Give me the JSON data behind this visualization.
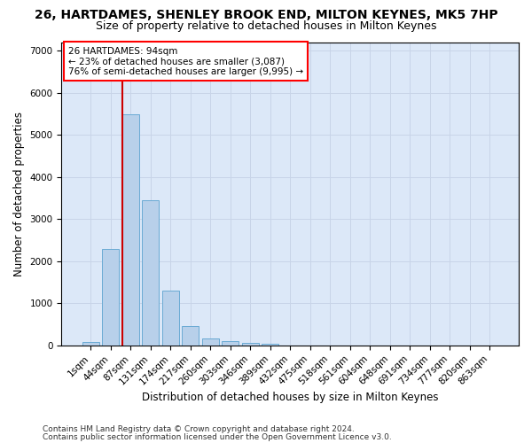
{
  "title": "26, HARTDAMES, SHENLEY BROOK END, MILTON KEYNES, MK5 7HP",
  "subtitle": "Size of property relative to detached houses in Milton Keynes",
  "xlabel": "Distribution of detached houses by size in Milton Keynes",
  "ylabel": "Number of detached properties",
  "footnote1": "Contains HM Land Registry data © Crown copyright and database right 2024.",
  "footnote2": "Contains public sector information licensed under the Open Government Licence v3.0.",
  "bar_labels": [
    "1sqm",
    "44sqm",
    "87sqm",
    "131sqm",
    "174sqm",
    "217sqm",
    "260sqm",
    "303sqm",
    "346sqm",
    "389sqm",
    "432sqm",
    "475sqm",
    "518sqm",
    "561sqm",
    "604sqm",
    "648sqm",
    "691sqm",
    "734sqm",
    "777sqm",
    "820sqm",
    "863sqm"
  ],
  "bar_values": [
    80,
    2280,
    5480,
    3450,
    1310,
    460,
    155,
    100,
    55,
    40,
    0,
    0,
    0,
    0,
    0,
    0,
    0,
    0,
    0,
    0,
    0
  ],
  "bar_color": "#b8d0ea",
  "bar_edge_color": "#6aaad4",
  "grid_color": "#c8d4e8",
  "background_color": "#dce8f8",
  "vline_color": "#cc0000",
  "vline_bar_index": 2,
  "annotation_text": "26 HARTDAMES: 94sqm\n← 23% of detached houses are smaller (3,087)\n76% of semi-detached houses are larger (9,995) →",
  "ylim": [
    0,
    7200
  ],
  "yticks": [
    0,
    1000,
    2000,
    3000,
    4000,
    5000,
    6000,
    7000
  ],
  "title_fontsize": 10,
  "subtitle_fontsize": 9,
  "tick_fontsize": 7.5,
  "label_fontsize": 8.5,
  "annotation_fontsize": 7.5,
  "footnote_fontsize": 6.5
}
